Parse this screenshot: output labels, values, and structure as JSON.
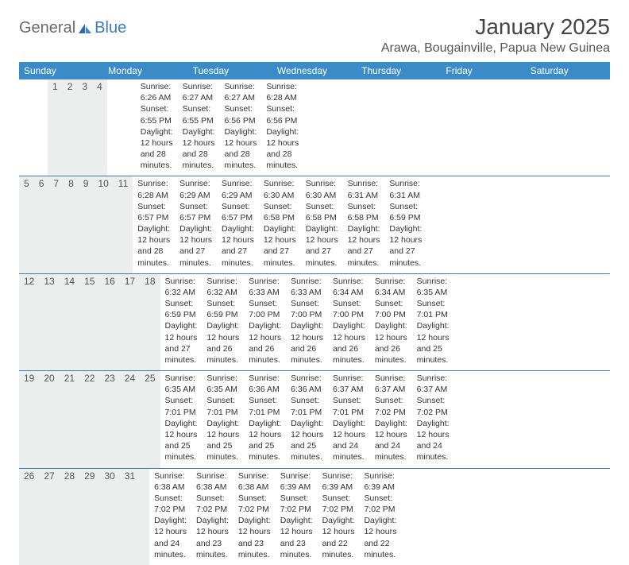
{
  "logo": {
    "part1": "General",
    "part2": "Blue"
  },
  "title": "January 2025",
  "location": "Arawa, Bougainville, Papua New Guinea",
  "colors": {
    "header_bg": "#3b8bc9",
    "header_text": "#ffffff",
    "daynum_bg": "#eceded",
    "divider": "#3b7bbf",
    "text": "#333333",
    "logo_gray": "#6a6a6a",
    "logo_blue": "#3b7bbf",
    "background": "#ffffff"
  },
  "typography": {
    "title_fontsize": 28,
    "location_fontsize": 16,
    "weekday_fontsize": 12,
    "daynum_fontsize": 12,
    "detail_fontsize": 10.5
  },
  "weekdays": [
    "Sunday",
    "Monday",
    "Tuesday",
    "Wednesday",
    "Thursday",
    "Friday",
    "Saturday"
  ],
  "weeks": [
    [
      null,
      null,
      null,
      {
        "d": "1",
        "sr": "Sunrise: 6:26 AM",
        "ss": "Sunset: 6:55 PM",
        "dl1": "Daylight: 12 hours",
        "dl2": "and 28 minutes."
      },
      {
        "d": "2",
        "sr": "Sunrise: 6:27 AM",
        "ss": "Sunset: 6:55 PM",
        "dl1": "Daylight: 12 hours",
        "dl2": "and 28 minutes."
      },
      {
        "d": "3",
        "sr": "Sunrise: 6:27 AM",
        "ss": "Sunset: 6:56 PM",
        "dl1": "Daylight: 12 hours",
        "dl2": "and 28 minutes."
      },
      {
        "d": "4",
        "sr": "Sunrise: 6:28 AM",
        "ss": "Sunset: 6:56 PM",
        "dl1": "Daylight: 12 hours",
        "dl2": "and 28 minutes."
      }
    ],
    [
      {
        "d": "5",
        "sr": "Sunrise: 6:28 AM",
        "ss": "Sunset: 6:57 PM",
        "dl1": "Daylight: 12 hours",
        "dl2": "and 28 minutes."
      },
      {
        "d": "6",
        "sr": "Sunrise: 6:29 AM",
        "ss": "Sunset: 6:57 PM",
        "dl1": "Daylight: 12 hours",
        "dl2": "and 27 minutes."
      },
      {
        "d": "7",
        "sr": "Sunrise: 6:29 AM",
        "ss": "Sunset: 6:57 PM",
        "dl1": "Daylight: 12 hours",
        "dl2": "and 27 minutes."
      },
      {
        "d": "8",
        "sr": "Sunrise: 6:30 AM",
        "ss": "Sunset: 6:58 PM",
        "dl1": "Daylight: 12 hours",
        "dl2": "and 27 minutes."
      },
      {
        "d": "9",
        "sr": "Sunrise: 6:30 AM",
        "ss": "Sunset: 6:58 PM",
        "dl1": "Daylight: 12 hours",
        "dl2": "and 27 minutes."
      },
      {
        "d": "10",
        "sr": "Sunrise: 6:31 AM",
        "ss": "Sunset: 6:58 PM",
        "dl1": "Daylight: 12 hours",
        "dl2": "and 27 minutes."
      },
      {
        "d": "11",
        "sr": "Sunrise: 6:31 AM",
        "ss": "Sunset: 6:59 PM",
        "dl1": "Daylight: 12 hours",
        "dl2": "and 27 minutes."
      }
    ],
    [
      {
        "d": "12",
        "sr": "Sunrise: 6:32 AM",
        "ss": "Sunset: 6:59 PM",
        "dl1": "Daylight: 12 hours",
        "dl2": "and 27 minutes."
      },
      {
        "d": "13",
        "sr": "Sunrise: 6:32 AM",
        "ss": "Sunset: 6:59 PM",
        "dl1": "Daylight: 12 hours",
        "dl2": "and 26 minutes."
      },
      {
        "d": "14",
        "sr": "Sunrise: 6:33 AM",
        "ss": "Sunset: 7:00 PM",
        "dl1": "Daylight: 12 hours",
        "dl2": "and 26 minutes."
      },
      {
        "d": "15",
        "sr": "Sunrise: 6:33 AM",
        "ss": "Sunset: 7:00 PM",
        "dl1": "Daylight: 12 hours",
        "dl2": "and 26 minutes."
      },
      {
        "d": "16",
        "sr": "Sunrise: 6:34 AM",
        "ss": "Sunset: 7:00 PM",
        "dl1": "Daylight: 12 hours",
        "dl2": "and 26 minutes."
      },
      {
        "d": "17",
        "sr": "Sunrise: 6:34 AM",
        "ss": "Sunset: 7:00 PM",
        "dl1": "Daylight: 12 hours",
        "dl2": "and 26 minutes."
      },
      {
        "d": "18",
        "sr": "Sunrise: 6:35 AM",
        "ss": "Sunset: 7:01 PM",
        "dl1": "Daylight: 12 hours",
        "dl2": "and 25 minutes."
      }
    ],
    [
      {
        "d": "19",
        "sr": "Sunrise: 6:35 AM",
        "ss": "Sunset: 7:01 PM",
        "dl1": "Daylight: 12 hours",
        "dl2": "and 25 minutes."
      },
      {
        "d": "20",
        "sr": "Sunrise: 6:35 AM",
        "ss": "Sunset: 7:01 PM",
        "dl1": "Daylight: 12 hours",
        "dl2": "and 25 minutes."
      },
      {
        "d": "21",
        "sr": "Sunrise: 6:36 AM",
        "ss": "Sunset: 7:01 PM",
        "dl1": "Daylight: 12 hours",
        "dl2": "and 25 minutes."
      },
      {
        "d": "22",
        "sr": "Sunrise: 6:36 AM",
        "ss": "Sunset: 7:01 PM",
        "dl1": "Daylight: 12 hours",
        "dl2": "and 25 minutes."
      },
      {
        "d": "23",
        "sr": "Sunrise: 6:37 AM",
        "ss": "Sunset: 7:01 PM",
        "dl1": "Daylight: 12 hours",
        "dl2": "and 24 minutes."
      },
      {
        "d": "24",
        "sr": "Sunrise: 6:37 AM",
        "ss": "Sunset: 7:02 PM",
        "dl1": "Daylight: 12 hours",
        "dl2": "and 24 minutes."
      },
      {
        "d": "25",
        "sr": "Sunrise: 6:37 AM",
        "ss": "Sunset: 7:02 PM",
        "dl1": "Daylight: 12 hours",
        "dl2": "and 24 minutes."
      }
    ],
    [
      {
        "d": "26",
        "sr": "Sunrise: 6:38 AM",
        "ss": "Sunset: 7:02 PM",
        "dl1": "Daylight: 12 hours",
        "dl2": "and 24 minutes."
      },
      {
        "d": "27",
        "sr": "Sunrise: 6:38 AM",
        "ss": "Sunset: 7:02 PM",
        "dl1": "Daylight: 12 hours",
        "dl2": "and 23 minutes."
      },
      {
        "d": "28",
        "sr": "Sunrise: 6:38 AM",
        "ss": "Sunset: 7:02 PM",
        "dl1": "Daylight: 12 hours",
        "dl2": "and 23 minutes."
      },
      {
        "d": "29",
        "sr": "Sunrise: 6:39 AM",
        "ss": "Sunset: 7:02 PM",
        "dl1": "Daylight: 12 hours",
        "dl2": "and 23 minutes."
      },
      {
        "d": "30",
        "sr": "Sunrise: 6:39 AM",
        "ss": "Sunset: 7:02 PM",
        "dl1": "Daylight: 12 hours",
        "dl2": "and 22 minutes."
      },
      {
        "d": "31",
        "sr": "Sunrise: 6:39 AM",
        "ss": "Sunset: 7:02 PM",
        "dl1": "Daylight: 12 hours",
        "dl2": "and 22 minutes."
      },
      null
    ]
  ]
}
